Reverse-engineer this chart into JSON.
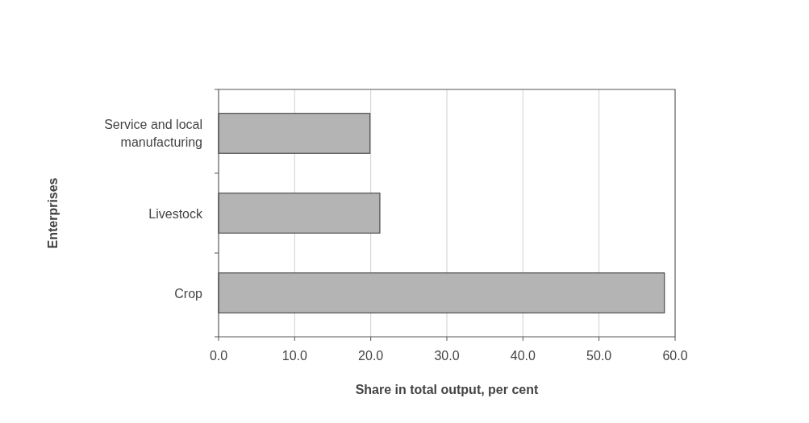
{
  "chart_data": {
    "type": "bar",
    "orientation": "horizontal",
    "categories": [
      "Service and local manufacturing",
      "Livestock",
      "Crop"
    ],
    "values": [
      19.9,
      21.2,
      58.6
    ],
    "color": "#b4b4b4",
    "xlim": [
      0,
      60
    ],
    "xticks": [
      {
        "value": 0,
        "label": "0.0"
      },
      {
        "value": 10,
        "label": "10.0"
      },
      {
        "value": 20,
        "label": "20.0"
      },
      {
        "value": 30,
        "label": "30.0"
      },
      {
        "value": 40,
        "label": "40.0"
      },
      {
        "value": 50,
        "label": "50.0"
      },
      {
        "value": 60,
        "label": "60.0"
      }
    ],
    "grid": "x",
    "xlabel": "Share in total output, per cent",
    "ylabel": "Enterprises"
  }
}
